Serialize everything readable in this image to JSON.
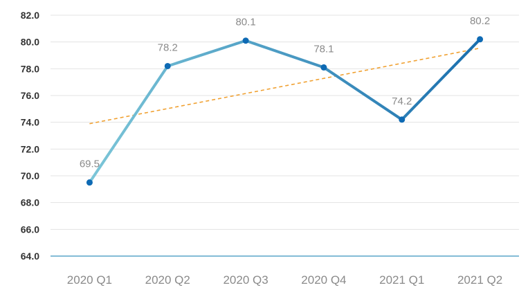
{
  "chart_data": {
    "type": "line",
    "title": "",
    "xlabel": "",
    "ylabel": "",
    "categories": [
      "2020 Q1",
      "2020 Q2",
      "2020 Q3",
      "2020 Q4",
      "2021 Q1",
      "2021 Q2"
    ],
    "series": [
      {
        "values": [
          69.5,
          78.2,
          80.1,
          78.1,
          74.2,
          80.2
        ],
        "data_labels": [
          "69.5",
          "78.2",
          "80.1",
          "78.1",
          "74.2",
          "80.2"
        ],
        "color_start": "#7cc6d8",
        "color_end": "#1a6fae",
        "marker_color": "#0e6ab4"
      }
    ],
    "trendline": {
      "style": "dashed",
      "color": "#f0a030",
      "type": "linear"
    },
    "ylim": [
      64.0,
      82.0
    ],
    "yticks": [
      "64.0",
      "66.0",
      "68.0",
      "70.0",
      "72.0",
      "74.0",
      "76.0",
      "78.0",
      "80.0",
      "82.0"
    ],
    "grid": true,
    "gridline_color": "#e3e3e3",
    "baseline_color": "#5aa6c8",
    "legend": "none"
  }
}
